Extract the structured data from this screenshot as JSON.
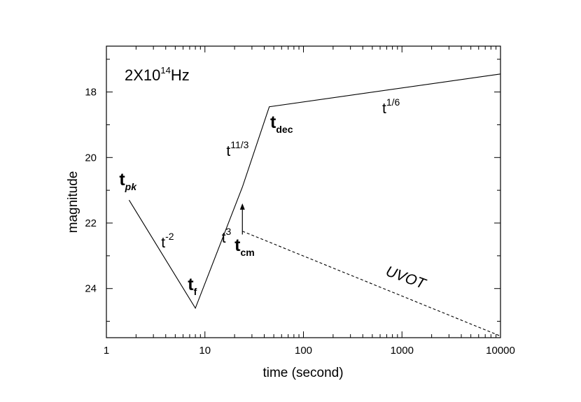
{
  "chart_data": {
    "type": "line",
    "xlabel": "time (second)",
    "ylabel": "magnitude",
    "x_scale": "log",
    "xlim": [
      1,
      10000
    ],
    "ylim": [
      25.5,
      16.6
    ],
    "y_inverted": true,
    "x_ticks": [
      1,
      10,
      100,
      1000,
      10000
    ],
    "x_tick_labels": [
      "1",
      "10",
      "100",
      "1000",
      "10000"
    ],
    "y_ticks": [
      18,
      20,
      22,
      24
    ],
    "y_tick_labels": [
      "18",
      "20",
      "22",
      "24"
    ],
    "grid": false,
    "legend": "none",
    "frequency_label": {
      "base": "2X10",
      "exponent": "14",
      "unit": "Hz"
    },
    "series": [
      {
        "style": "solid",
        "color": "#000000",
        "points": [
          [
            1.7,
            21.3
          ],
          [
            8,
            24.6
          ],
          [
            24,
            20.9
          ],
          [
            45,
            18.45
          ],
          [
            10000,
            17.45
          ]
        ]
      },
      {
        "name": "UVOT",
        "style": "dashed",
        "color": "#000000",
        "points": [
          [
            24,
            22.25
          ],
          [
            10000,
            25.45
          ]
        ]
      }
    ],
    "arrow": {
      "x": 24,
      "y_from": 22.35,
      "y_to": 21.4
    },
    "annotations": [
      {
        "id": "tpk",
        "base": "t",
        "sub": "pk",
        "sup": "",
        "bold": true,
        "italic_sub": true,
        "x": 1.35,
        "y": 20.85
      },
      {
        "id": "tf",
        "base": "t",
        "sub": "f",
        "sup": "",
        "bold": true,
        "italic_sub": false,
        "x": 6.7,
        "y": 24.05
      },
      {
        "id": "tcm",
        "base": "t",
        "sub": "cm",
        "sup": "",
        "bold": true,
        "italic_sub": false,
        "x": 20,
        "y": 22.85
      },
      {
        "id": "tdec",
        "base": "t",
        "sub": "dec",
        "sup": "",
        "bold": true,
        "italic_sub": false,
        "x": 46,
        "y": 19.1
      },
      {
        "id": "pow-2",
        "base": "t",
        "sub": "",
        "sup": "-2",
        "bold": false,
        "x": 3.6,
        "y": 22.75
      },
      {
        "id": "pow3",
        "base": "t",
        "sub": "",
        "sup": "3",
        "bold": false,
        "x": 14.8,
        "y": 22.6
      },
      {
        "id": "pow11_3",
        "base": "t",
        "sub": "",
        "sup": "11/3",
        "bold": false,
        "x": 16.5,
        "y": 19.95
      },
      {
        "id": "pow1_6",
        "base": "t",
        "sub": "",
        "sup": "1/6",
        "bold": false,
        "x": 630,
        "y": 18.65
      }
    ],
    "uvot_label": {
      "text": "UVOT",
      "x": 1050,
      "y": 23.8,
      "rotate": 20
    }
  }
}
